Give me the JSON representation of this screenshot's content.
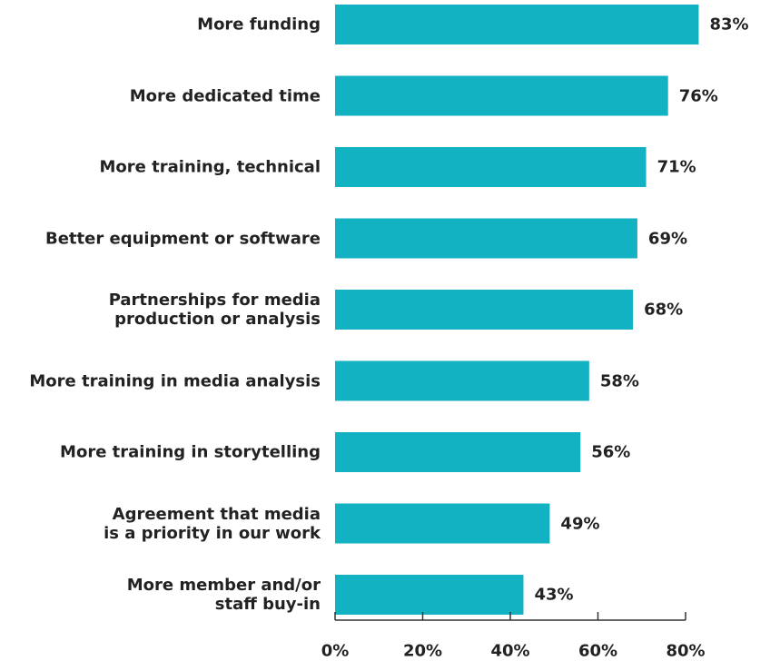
{
  "chart_data": {
    "type": "bar",
    "orientation": "horizontal",
    "categories": [
      "More funding",
      "More dedicated time",
      "More training, technical",
      "Better equipment or software",
      "Partnerships for media\nproduction or analysis",
      "More training in media analysis",
      "More training in storytelling",
      "Agreement that media\nis a priority in our work",
      "More member and/or\nstaff buy-in"
    ],
    "values": [
      83,
      76,
      71,
      69,
      68,
      58,
      56,
      49,
      43
    ],
    "value_labels": [
      "83%",
      "76%",
      "71%",
      "69%",
      "68%",
      "58%",
      "56%",
      "49%",
      "43%"
    ],
    "color": "#13b2c2",
    "xlim": [
      0,
      80
    ],
    "xticks": [
      {
        "value": 0,
        "label": "0%"
      },
      {
        "value": 20,
        "label": "20%"
      },
      {
        "value": 40,
        "label": "40%"
      },
      {
        "value": 60,
        "label": "60%"
      },
      {
        "value": 80,
        "label": "80%"
      }
    ]
  }
}
